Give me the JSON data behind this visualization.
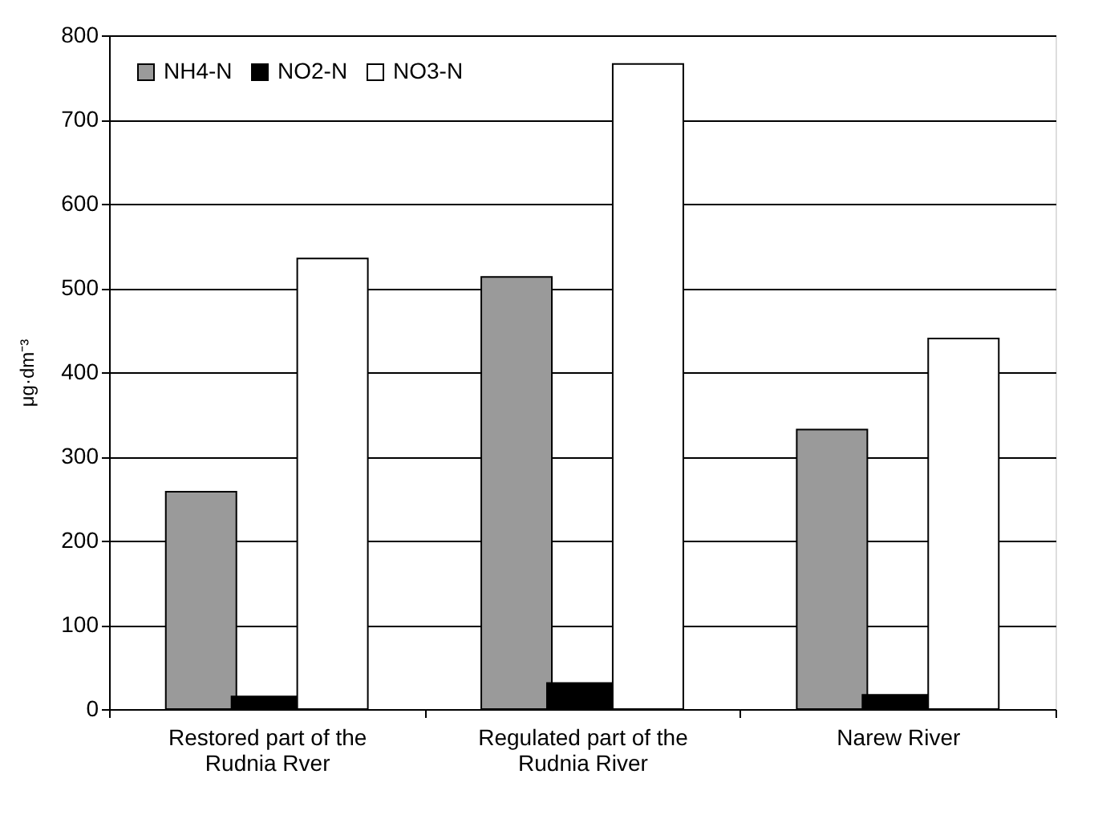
{
  "chart_data": {
    "type": "bar",
    "ylabel": "μg·dm⁻³",
    "categories": [
      "Restored part of the Rudnia Rver",
      "Regulated part of the Rudnia River",
      "Narew River"
    ],
    "series": [
      {
        "name": "NH4-N",
        "color": "#9a9a9a",
        "values": [
          258,
          513,
          332
        ]
      },
      {
        "name": "NO2-N",
        "color": "#000000",
        "values": [
          15,
          31,
          17
        ]
      },
      {
        "name": "NO3-N",
        "color": "#ffffff",
        "values": [
          535,
          766,
          440
        ]
      }
    ],
    "ylim": [
      0,
      800
    ],
    "yticks": [
      0,
      100,
      200,
      300,
      400,
      500,
      600,
      700,
      800
    ],
    "grid": "y",
    "legend": "top left"
  }
}
